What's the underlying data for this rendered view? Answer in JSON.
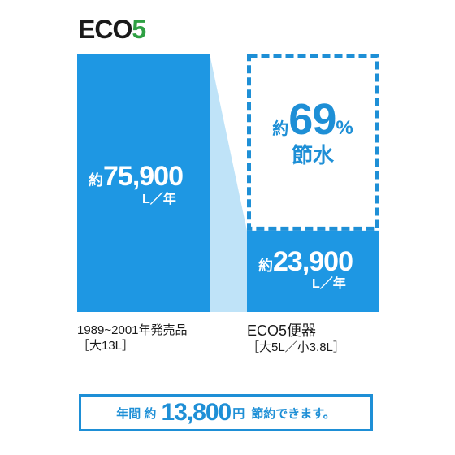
{
  "logo": {
    "eco": "ECO",
    "five": "5"
  },
  "chart_data": {
    "type": "bar",
    "categories": [
      "1989~2001年発売品",
      "ECO5便器"
    ],
    "values": [
      75900,
      23900
    ],
    "ylim": [
      0,
      75900
    ],
    "colors": {
      "bar": "#1e97e3",
      "connector": "#bfe3f8",
      "accent": "#1e8fd6"
    }
  },
  "bar_labels": [
    {
      "prefix": "約",
      "value": "75,900",
      "unit": "L／年"
    },
    {
      "prefix": "約",
      "value": "23,900",
      "unit": "L／年"
    }
  ],
  "saving": {
    "prefix": "約",
    "percent": "69",
    "sign": "%",
    "text": "節水"
  },
  "captions": [
    {
      "line1": "1989~2001年発売品",
      "line2": "［大13L］"
    },
    {
      "line1": "ECO5便器",
      "line2": "［大5L／小3.8L］"
    }
  ],
  "footer": {
    "part1": "年間 約",
    "amount": "13,800",
    "yen": "円",
    "part2": "節約できます。"
  }
}
